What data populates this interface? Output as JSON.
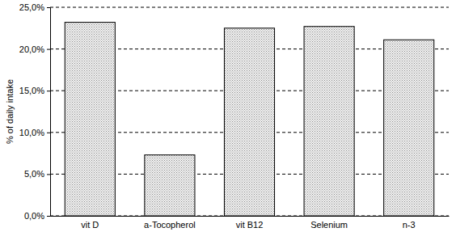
{
  "chart_data": {
    "type": "bar",
    "y_label": "% of daily intake",
    "categories": [
      "vit D",
      "a-Tocopherol",
      "vit B12",
      "Selenium",
      "n-3"
    ],
    "values": [
      23.2,
      7.3,
      22.5,
      22.7,
      21.1
    ],
    "color": "#8c8c8c",
    "ylim": [
      0,
      25
    ],
    "yticks": [
      {
        "value": 0,
        "label": "0,0%"
      },
      {
        "value": 5,
        "label": "5,0%"
      },
      {
        "value": 10,
        "label": "10,0%"
      },
      {
        "value": 15,
        "label": "15,0%"
      },
      {
        "value": 20,
        "label": "20,0%"
      },
      {
        "value": 25,
        "label": "25,0%"
      }
    ],
    "grid": true
  }
}
